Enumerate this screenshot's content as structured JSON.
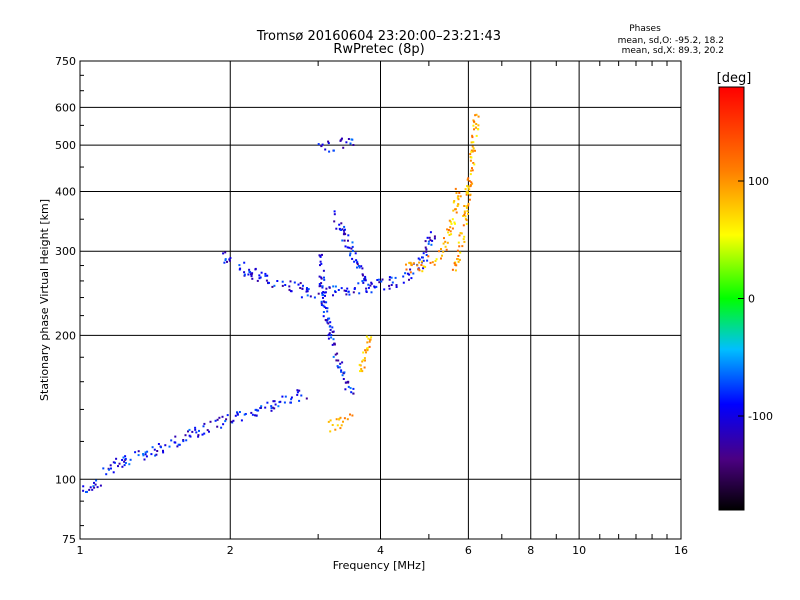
{
  "chart_data": {
    "type": "scatter",
    "title": "Tromsø 20160604 23:20:00–23:21:43",
    "subtitle": "RwPretec (8p)",
    "xlabel": "Frequency [MHz]",
    "ylabel": "Stationary phase Virtual Height [km]",
    "x_scale": "log",
    "y_scale": "log",
    "xlim": [
      1,
      16
    ],
    "ylim": [
      75,
      750
    ],
    "x_ticks": [
      1,
      2,
      4,
      6,
      8,
      10,
      16
    ],
    "x_tick_labels": [
      "1",
      "2",
      "4",
      "6",
      "8",
      "10",
      "16"
    ],
    "x_grid": [
      1,
      2,
      4,
      6,
      8,
      10
    ],
    "y_ticks": [
      75,
      100,
      200,
      300,
      400,
      500,
      600,
      750
    ],
    "y_tick_labels": [
      "75",
      "100",
      "200",
      "300",
      "400",
      "500",
      "600",
      "750"
    ],
    "y_grid": [
      100,
      200,
      300,
      400,
      500,
      600
    ],
    "grid": true,
    "stats": {
      "title": "Phases",
      "line_o": "mean, sd,O: -95.2, 18.2",
      "line_x": "mean, sd,X:  89.3, 20.2"
    },
    "colorbar": {
      "label": "[deg]",
      "range": [
        -180,
        180
      ],
      "ticks": [
        100,
        0,
        -100
      ],
      "tick_labels": [
        "100",
        "0",
        "-100"
      ]
    },
    "series": [
      {
        "mode": "O",
        "phase_deg": -95,
        "segments": [
          {
            "x": [
              1.0,
              1.1
            ],
            "y": [
              96,
              99
            ]
          },
          {
            "x": [
              1.1,
              1.3,
              1.5,
              1.7,
              2.0,
              2.3,
              2.6,
              2.8
            ],
            "y": [
              105,
              112,
              118,
              126,
              134,
              141,
              148,
              152
            ]
          },
          {
            "x": [
              1.9,
              2.2,
              2.5,
              2.8
            ],
            "y": [
              300,
              270,
              255,
              252
            ]
          },
          {
            "x": [
              2.8,
              3.2,
              3.6,
              4.0,
              4.4,
              4.8,
              5.1
            ],
            "y": [
              247,
              250,
              252,
              256,
              262,
              285,
              330
            ]
          },
          {
            "x": [
              3.0,
              3.2,
              3.5
            ],
            "y": [
              490,
              500,
              510
            ]
          },
          {
            "x": [
              3.0,
              3.1,
              3.3,
              3.5
            ],
            "y": [
              300,
              220,
              175,
              150
            ]
          },
          {
            "x": [
              3.2,
              3.5,
              3.8
            ],
            "y": [
              360,
              300,
              250
            ]
          }
        ]
      },
      {
        "mode": "X",
        "phase_deg": 90,
        "segments": [
          {
            "x": [
              3.1,
              3.3,
              3.5
            ],
            "y": [
              130,
              131,
              134
            ]
          },
          {
            "x": [
              3.6,
              3.8
            ],
            "y": [
              165,
              200
            ]
          },
          {
            "x": [
              4.4,
              4.8,
              5.2,
              5.5,
              5.7
            ],
            "y": [
              275,
              280,
              295,
              330,
              400
            ]
          },
          {
            "x": [
              5.6,
              5.8,
              6.0,
              6.2
            ],
            "y": [
              280,
              320,
              420,
              580
            ]
          }
        ]
      }
    ]
  }
}
